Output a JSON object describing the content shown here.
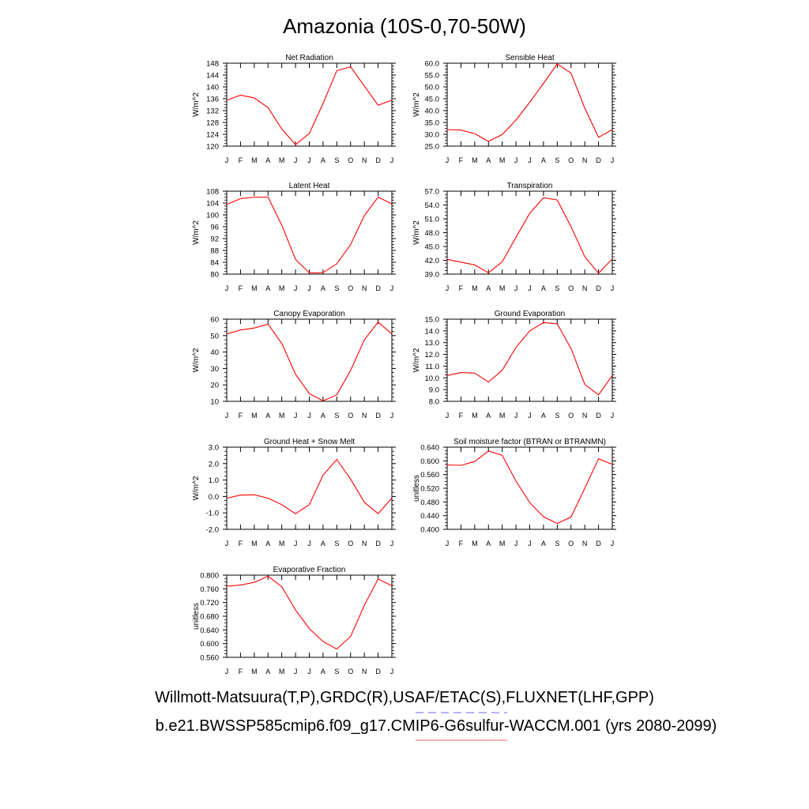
{
  "title": "Amazonia (10S-0,70-50W)",
  "footer": {
    "line1": "Willmott-Matsuura(T,P),GRDC(R),USAF/ETAC(S),FLUXNET(LHF,GPP)",
    "line2": "b.e21.BWSSP585cmip6.f09_g17.CMIP6-G6sulfur-WACCM.001 (yrs 2080-2099)",
    "line1_underline_color": "#6666ff",
    "line2_underline_color": "#ff6666"
  },
  "line_color": "#ff0000",
  "chart_data": [
    {
      "type": "line",
      "title": "Net Radiation",
      "ylabel": "W/m^2",
      "x": [
        "J",
        "F",
        "M",
        "A",
        "M",
        "J",
        "J",
        "A",
        "S",
        "O",
        "N",
        "D",
        "J"
      ],
      "ylim": [
        120,
        148
      ],
      "yticks": [
        "120",
        "124",
        "128",
        "132",
        "136",
        "140",
        "144",
        "148"
      ],
      "series": [
        {
          "values": [
            135.5,
            137.2,
            136.3,
            133,
            125.8,
            120.5,
            124.3,
            134.4,
            145.5,
            146.8,
            140.3,
            133.8,
            135.5
          ]
        }
      ]
    },
    {
      "type": "line",
      "title": "Sensible Heat",
      "ylabel": "W/m^2",
      "x": [
        "J",
        "F",
        "M",
        "A",
        "M",
        "J",
        "J",
        "A",
        "S",
        "O",
        "N",
        "D",
        "J"
      ],
      "ylim": [
        25.0,
        60.0
      ],
      "yticks": [
        "25.0",
        "30.0",
        "35.0",
        "40.0",
        "45.0",
        "50.0",
        "55.0",
        "60.0"
      ],
      "series": [
        {
          "values": [
            32.0,
            31.8,
            30.3,
            27.0,
            29.9,
            36.0,
            43.5,
            51.5,
            59.7,
            55.8,
            41.0,
            28.7,
            32.0
          ]
        }
      ]
    },
    {
      "type": "line",
      "title": "Latent Heat",
      "ylabel": "W/m^2",
      "x": [
        "J",
        "F",
        "M",
        "A",
        "M",
        "J",
        "J",
        "A",
        "S",
        "O",
        "N",
        "D",
        "J"
      ],
      "ylim": [
        80,
        108
      ],
      "yticks": [
        "80",
        "84",
        "88",
        "92",
        "96",
        "100",
        "104",
        "108"
      ],
      "series": [
        {
          "values": [
            103.5,
            105.5,
            106.0,
            106.0,
            96.5,
            85.0,
            80.4,
            80.5,
            83.5,
            90.0,
            99.8,
            106.0,
            103.7
          ]
        }
      ]
    },
    {
      "type": "line",
      "title": "Transpiration",
      "ylabel": "W/m^2",
      "x": [
        "J",
        "F",
        "M",
        "A",
        "M",
        "J",
        "J",
        "A",
        "S",
        "O",
        "N",
        "D",
        "J"
      ],
      "ylim": [
        39.0,
        57.0
      ],
      "yticks": [
        "39.0",
        "42.0",
        "45.0",
        "48.0",
        "51.0",
        "54.0",
        "57.0"
      ],
      "series": [
        {
          "values": [
            42.2,
            41.6,
            41.0,
            39.3,
            41.7,
            47.0,
            52.2,
            55.6,
            55.1,
            49.3,
            42.8,
            39.2,
            42.3
          ]
        }
      ]
    },
    {
      "type": "line",
      "title": "Canopy Evaporation",
      "ylabel": "W/m^2",
      "x": [
        "J",
        "F",
        "M",
        "A",
        "M",
        "J",
        "J",
        "A",
        "S",
        "O",
        "N",
        "D",
        "J"
      ],
      "ylim": [
        10,
        60
      ],
      "yticks": [
        "10",
        "20",
        "30",
        "40",
        "50",
        "60"
      ],
      "series": [
        {
          "values": [
            51.0,
            53.4,
            54.6,
            57.0,
            45.2,
            26.5,
            14.7,
            10.3,
            14.0,
            28.9,
            47.5,
            58.2,
            51.0
          ]
        }
      ]
    },
    {
      "type": "line",
      "title": "Ground Evaporation",
      "ylabel": "W/m^2",
      "x": [
        "J",
        "F",
        "M",
        "A",
        "M",
        "J",
        "J",
        "A",
        "S",
        "O",
        "N",
        "D",
        "J"
      ],
      "ylim": [
        8.0,
        15.0
      ],
      "yticks": [
        "8.0",
        "9.0",
        "10.0",
        "11.0",
        "12.0",
        "13.0",
        "14.0",
        "15.0"
      ],
      "series": [
        {
          "values": [
            10.2,
            10.45,
            10.4,
            9.65,
            10.65,
            12.6,
            14.0,
            14.72,
            14.6,
            12.5,
            9.45,
            8.55,
            10.2
          ]
        }
      ]
    },
    {
      "type": "line",
      "title": "Ground Heat + Snow Melt",
      "ylabel": "W/m^2",
      "x": [
        "J",
        "F",
        "M",
        "A",
        "M",
        "J",
        "J",
        "A",
        "S",
        "O",
        "N",
        "D",
        "J"
      ],
      "ylim": [
        -2.0,
        3.0
      ],
      "yticks": [
        "-2.0",
        "-1.0",
        "0.0",
        "1.0",
        "2.0",
        "3.0"
      ],
      "series": [
        {
          "values": [
            -0.1,
            0.08,
            0.1,
            -0.1,
            -0.5,
            -1.05,
            -0.5,
            1.3,
            2.25,
            1.05,
            -0.35,
            -1.05,
            -0.1
          ]
        }
      ]
    },
    {
      "type": "line",
      "title": "Soil moisture factor (BTRAN or BTRANMN)",
      "ylabel": "unitless",
      "x": [
        "J",
        "F",
        "M",
        "A",
        "M",
        "J",
        "J",
        "A",
        "S",
        "O",
        "N",
        "D",
        "J"
      ],
      "ylim": [
        0.4,
        0.64
      ],
      "yticks": [
        "0.400",
        "0.440",
        "0.480",
        "0.520",
        "0.560",
        "0.600",
        "0.640"
      ],
      "series": [
        {
          "values": [
            0.588,
            0.587,
            0.598,
            0.629,
            0.616,
            0.541,
            0.478,
            0.437,
            0.417,
            0.436,
            0.52,
            0.606,
            0.59
          ]
        }
      ]
    },
    {
      "type": "line",
      "title": "Evaporative Fraction",
      "ylabel": "unitless",
      "x": [
        "J",
        "F",
        "M",
        "A",
        "M",
        "J",
        "J",
        "A",
        "S",
        "O",
        "N",
        "D",
        "J"
      ],
      "ylim": [
        0.56,
        0.8
      ],
      "yticks": [
        "0.560",
        "0.600",
        "0.640",
        "0.680",
        "0.720",
        "0.760",
        "0.800"
      ],
      "series": [
        {
          "values": [
            0.768,
            0.771,
            0.779,
            0.797,
            0.766,
            0.698,
            0.644,
            0.606,
            0.584,
            0.621,
            0.712,
            0.789,
            0.769
          ]
        }
      ]
    }
  ]
}
